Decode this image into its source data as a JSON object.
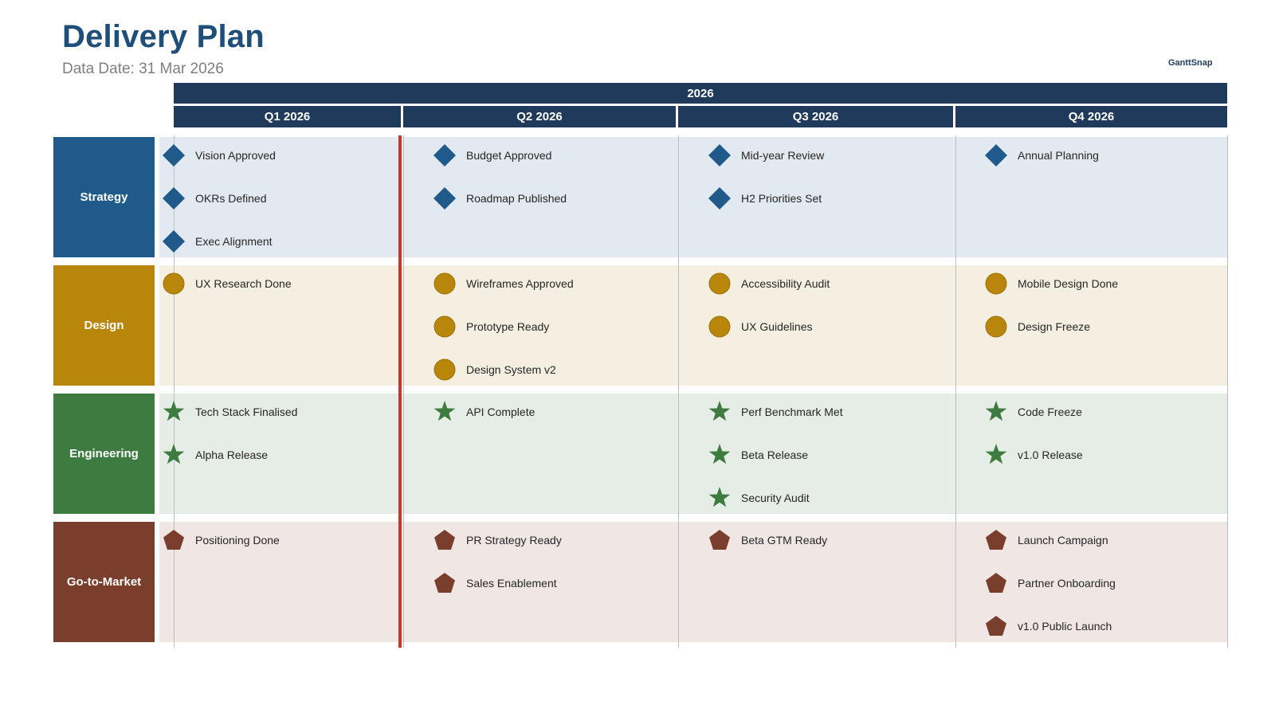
{
  "header": {
    "title": "Delivery Plan",
    "data_date": "Data Date: 31 Mar 2026",
    "brand": "GanttSnap"
  },
  "timeline": {
    "year": "2026",
    "quarters": [
      "Q1 2026",
      "Q2 2026",
      "Q3 2026",
      "Q4 2026"
    ],
    "today_marker": "31 Mar 2026"
  },
  "lanes": [
    {
      "name": "Strategy",
      "color": "#1f5a8a",
      "band_color": "#e3e9f0",
      "shape": "diamond",
      "milestones": [
        [
          "Vision Approved",
          "OKRs Defined",
          "Exec Alignment"
        ],
        [
          "Budget Approved",
          "Roadmap Published"
        ],
        [
          "Mid-year Review",
          "H2 Priorities Set"
        ],
        [
          "Annual Planning"
        ]
      ]
    },
    {
      "name": "Design",
      "color": "#b8860b",
      "band_color": "#f5efe2",
      "shape": "circle",
      "milestones": [
        [
          "UX Research Done"
        ],
        [
          "Wireframes Approved",
          "Prototype Ready",
          "Design System v2"
        ],
        [
          "Accessibility Audit",
          "UX Guidelines"
        ],
        [
          "Mobile Design Done",
          "Design Freeze"
        ]
      ]
    },
    {
      "name": "Engineering",
      "color": "#3e7b40",
      "band_color": "#e6ede6",
      "shape": "star",
      "milestones": [
        [
          "Tech Stack Finalised",
          "Alpha Release"
        ],
        [
          "API Complete"
        ],
        [
          "Perf Benchmark Met",
          "Beta Release",
          "Security Audit"
        ],
        [
          "Code Freeze",
          "v1.0 Release"
        ]
      ]
    },
    {
      "name": "Go-to-Market",
      "color": "#7a3f2c",
      "band_color": "#f0e6e4",
      "shape": "pentagon",
      "milestones": [
        [
          "Positioning Done"
        ],
        [
          "PR Strategy Ready",
          "Sales Enablement"
        ],
        [
          "Beta GTM Ready"
        ],
        [
          "Launch Campaign",
          "Partner Onboarding",
          "v1.0 Public Launch"
        ]
      ]
    }
  ]
}
